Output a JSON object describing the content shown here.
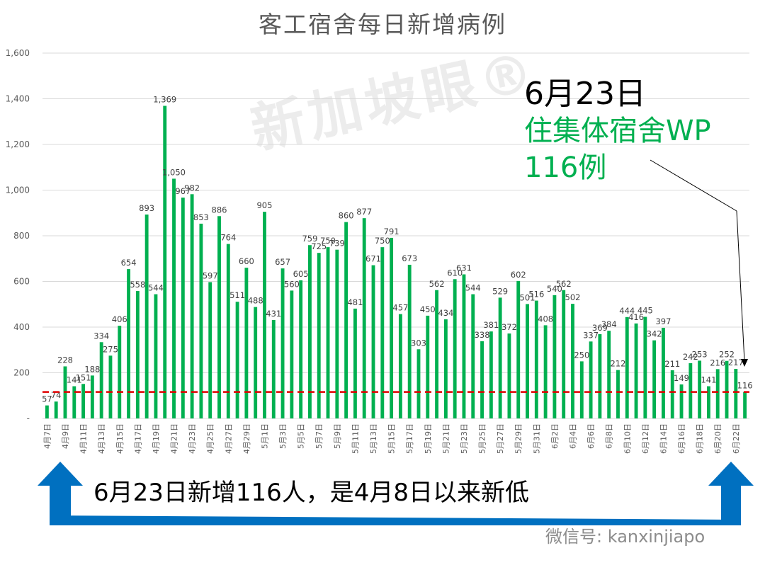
{
  "header": {
    "title": "客工宿舍每日新增病例"
  },
  "annotation": {
    "date": "6月23日",
    "line2": "住集体宿舍WP",
    "line3": "116例"
  },
  "caption": "6月23日新增116人，是4月8日以来新低",
  "watermark": {
    "logo_text": "新加坡眼®",
    "credit": "微信号: kanxinjiapo"
  },
  "colors": {
    "bar": "#00b050",
    "reference_line": "#e00000",
    "arrow": "#0070c0",
    "grid": "#d9d9d9"
  },
  "chart_data": {
    "type": "bar",
    "ylim": [
      0,
      1600
    ],
    "yticks": [
      "-",
      "200",
      "400",
      "600",
      "800",
      "1,000",
      "1,200",
      "1,400",
      "1,600"
    ],
    "ytick_values": [
      0,
      200,
      400,
      600,
      800,
      1000,
      1200,
      1400,
      1600
    ],
    "grid": true,
    "reference_line": 116,
    "categories": [
      "4月7日",
      "4月8日",
      "4月9日",
      "4月10日",
      "4月11日",
      "4月12日",
      "4月13日",
      "4月14日",
      "4月15日",
      "4月16日",
      "4月17日",
      "4月18日",
      "4月19日",
      "4月20日",
      "4月21日",
      "4月22日",
      "4月23日",
      "4月24日",
      "4月25日",
      "4月26日",
      "4月27日",
      "4月28日",
      "4月29日",
      "4月30日",
      "5月1日",
      "5月2日",
      "5月3日",
      "5月4日",
      "5月5日",
      "5月6日",
      "5月7日",
      "5月8日",
      "5月9日",
      "5月10日",
      "5月11日",
      "5月12日",
      "5月13日",
      "5月14日",
      "5月15日",
      "5月16日",
      "5月17日",
      "5月18日",
      "5月19日",
      "5月20日",
      "5月21日",
      "5月22日",
      "5月23日",
      "5月24日",
      "5月25日",
      "5月26日",
      "5月27日",
      "5月28日",
      "5月29日",
      "5月30日",
      "5月31日",
      "6月1日",
      "6月2日",
      "6月3日",
      "6月4日",
      "6月5日",
      "6月6日",
      "6月7日",
      "6月8日",
      "6月9日",
      "6月10日",
      "6月11日",
      "6月12日",
      "6月13日",
      "6月14日",
      "6月15日",
      "6月16日",
      "6月17日",
      "6月18日",
      "6月19日",
      "6月20日",
      "6月21日",
      "6月22日",
      "6月23日"
    ],
    "tick_labels": [
      "4月7日",
      "4月9日",
      "4月11日",
      "4月13日",
      "4月15日",
      "4月17日",
      "4月19日",
      "4月21日",
      "4月23日",
      "4月25日",
      "4月27日",
      "4月29日",
      "5月1日",
      "5月3日",
      "5月5日",
      "5月7日",
      "5月9日",
      "5月11日",
      "5月13日",
      "5月15日",
      "5月17日",
      "5月19日",
      "5月21日",
      "5月23日",
      "5月25日",
      "5月27日",
      "5月29日",
      "5月31日",
      "6月2日",
      "6月4日",
      "6月6日",
      "6月8日",
      "6月10日",
      "6月12日",
      "6月14日",
      "6月16日",
      "6月18日",
      "6月20日",
      "6月22日"
    ],
    "values": [
      57,
      74,
      228,
      141,
      151,
      188,
      334,
      275,
      406,
      654,
      558,
      893,
      544,
      1369,
      1050,
      967,
      982,
      853,
      597,
      886,
      764,
      511,
      660,
      488,
      905,
      431,
      657,
      560,
      605,
      759,
      725,
      750,
      739,
      860,
      481,
      877,
      671,
      750,
      791,
      457,
      673,
      303,
      450,
      562,
      434,
      610,
      631,
      544,
      338,
      381,
      529,
      372,
      602,
      501,
      516,
      408,
      540,
      562,
      502,
      250,
      337,
      369,
      384,
      212,
      444,
      416,
      445,
      342,
      397,
      211,
      149,
      242,
      253,
      141,
      216,
      252,
      217,
      116
    ],
    "data_labels": [
      "57",
      "74",
      "228",
      "141",
      "151",
      "188",
      "334",
      "275",
      "406",
      "654",
      "558",
      "893",
      "544",
      "1,369",
      "1,050",
      "967",
      "982",
      "853",
      "597",
      "886",
      "764",
      "511",
      "660",
      "488",
      "905",
      "431",
      "657",
      "560",
      "605",
      "759",
      "725",
      "750",
      "739",
      "860",
      "481",
      "877",
      "671",
      "750",
      "791",
      "457",
      "673",
      "303",
      "450",
      "562",
      "434",
      "610",
      "631",
      "544",
      "338",
      "381",
      "529",
      "372",
      "602",
      "501",
      "516",
      "408",
      "540",
      "562",
      "502",
      "250",
      "337",
      "369",
      "384",
      "212",
      "444",
      "416",
      "445",
      "342",
      "397",
      "211",
      "149",
      "242",
      "253",
      "141",
      "216",
      "252",
      "217",
      "116"
    ]
  }
}
